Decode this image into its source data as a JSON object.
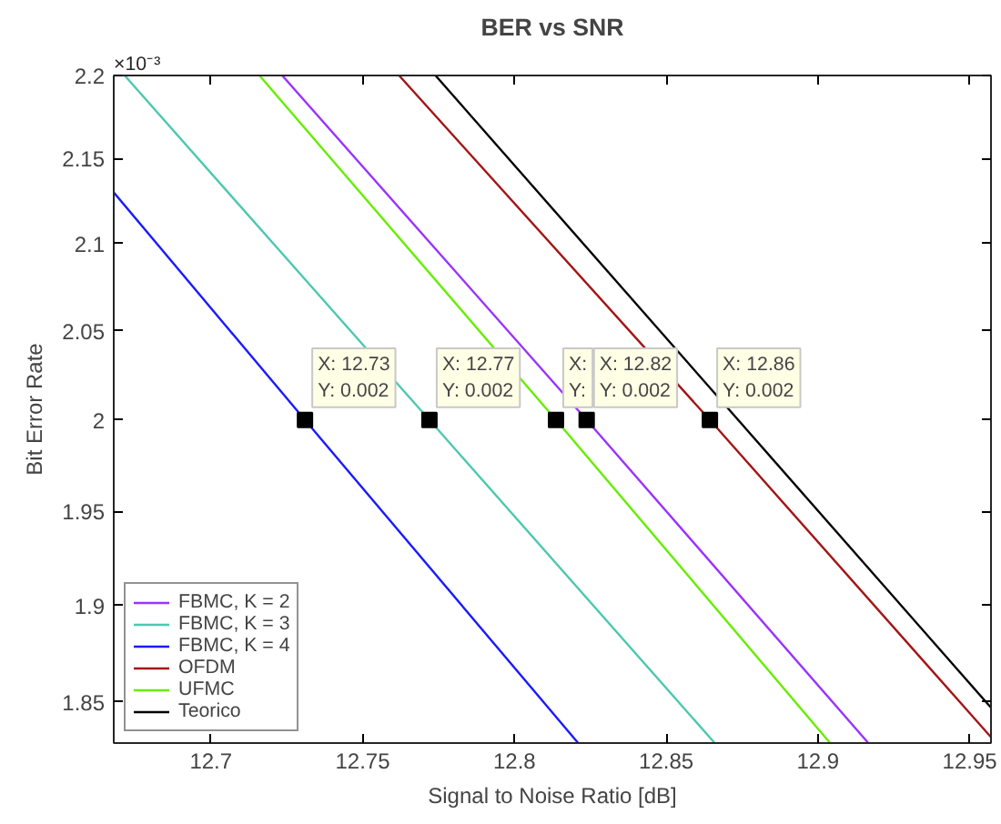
{
  "chart_data": {
    "type": "line",
    "title": "BER vs SNR",
    "xlabel": "Signal to Noise Ratio [dB]",
    "ylabel": "Bit Error Rate",
    "log": "y",
    "grid": false,
    "legend": "bottom left",
    "xlim": [
      12.668,
      12.957
    ],
    "ylim": [
      1.829,
      2.2
    ],
    "xticks": [
      12.7,
      12.75,
      12.8,
      12.85,
      12.9,
      12.95
    ],
    "yticks": [
      1.85,
      1.9,
      1.95,
      2,
      2.05,
      2.1,
      2.15,
      2.2
    ],
    "series": [
      {
        "name": "FBMC, K = 2",
        "color": "#9933ff",
        "x": [
          12.7235,
          12.8238,
          12.9166
        ],
        "values": [
          2.2,
          2.0,
          1.829
        ]
      },
      {
        "name": "FBMC, K = 3",
        "color": "#4dc8b0",
        "x": [
          12.6716,
          12.772,
          12.866
        ],
        "values": [
          2.2,
          2.0,
          1.829
        ]
      },
      {
        "name": "FBMC, K = 4",
        "color": "#1a1aff",
        "x": [
          12.668,
          12.731,
          12.821
        ],
        "values": [
          2.13,
          2.0,
          1.829
        ]
      },
      {
        "name": "OFDM",
        "color": "#a31515",
        "x": [
          12.762,
          12.8644,
          12.957
        ],
        "values": [
          2.2,
          2.0,
          1.832
        ]
      },
      {
        "name": "UFMC",
        "color": "#66ee00",
        "x": [
          12.716,
          12.8137,
          12.904
        ],
        "values": [
          2.2,
          2.0,
          1.829
        ]
      },
      {
        "name": "Teorico",
        "color": "#000000",
        "x": [
          12.774,
          12.957
        ],
        "values": [
          2.2,
          1.847
        ]
      }
    ],
    "annotations": [
      "×10⁻³",
      {
        "text": "X: 12.73\nY: 0.002",
        "x": 12.731,
        "y": 2.0
      },
      {
        "text": "X: 12.77\nY: 0.002",
        "x": 12.772,
        "y": 2.0
      },
      {
        "text": "X:\nY:",
        "x": 12.8137,
        "y": 2.0
      },
      {
        "text": "X: 12.82\nY: 0.002",
        "x": 12.8238,
        "y": 2.0
      },
      {
        "text": "X: 12.86\nY: 0.002",
        "x": 12.8644,
        "y": 2.0
      }
    ]
  }
}
